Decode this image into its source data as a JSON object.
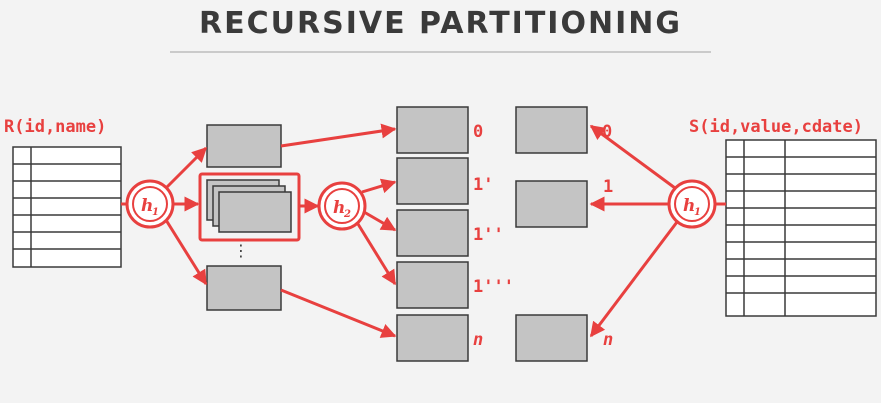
{
  "title": "RECURSIVE PARTITIONING",
  "colors": {
    "accent": "#e8403f",
    "box_fill": "#c4c4c4",
    "box_stroke": "#3a3a3a",
    "text": "#3a3a3a"
  },
  "left_relation": {
    "label": "R(id,name)",
    "rows": 7
  },
  "right_relation": {
    "label": "S(id,value,cdate)",
    "rows": 10
  },
  "hash_functions": {
    "left": "h",
    "left_sub": "1",
    "middle": "h",
    "middle_sub": "2",
    "right": "h",
    "right_sub": "1"
  },
  "partition_labels": {
    "p0": "0",
    "p1": "1'",
    "p2": "1''",
    "p3": "1'''",
    "pn": "n"
  },
  "right_partition_labels": {
    "p0": "0",
    "p1": "1",
    "pn": "n"
  },
  "ellipsis": "⋮"
}
